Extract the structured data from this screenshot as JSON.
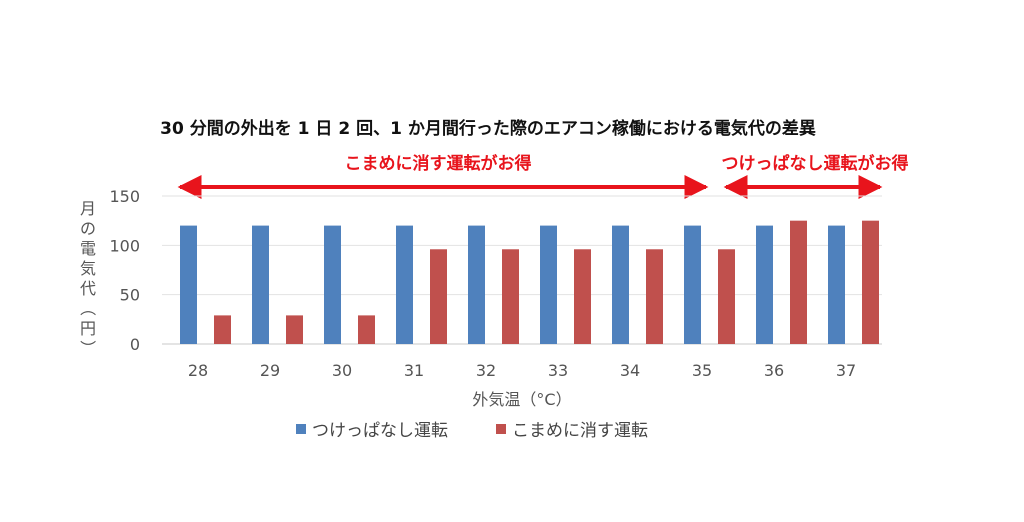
{
  "chart_data": {
    "type": "bar",
    "title": "30 分間の外出を 1 日 2 回、1 か月間行った際のエアコン稼働における電気代の差異",
    "xlabel": "外気温（°C）",
    "ylabel": "月の電気代（円）",
    "categories": [
      "28",
      "29",
      "30",
      "31",
      "32",
      "33",
      "34",
      "35",
      "36",
      "37"
    ],
    "series": [
      {
        "name": "つけっぱなし運転",
        "color": "#4f81bd",
        "values": [
          120,
          120,
          120,
          120,
          120,
          120,
          120,
          120,
          120,
          120
        ]
      },
      {
        "name": "こまめに消す運転",
        "color": "#c0504d",
        "values": [
          29,
          29,
          29,
          96,
          96,
          96,
          96,
          96,
          125,
          125
        ]
      }
    ],
    "ylim": [
      0,
      150
    ],
    "yticks": [
      "0",
      "50",
      "100",
      "150"
    ],
    "grid": true,
    "legend": "bottom",
    "annotations": [
      {
        "text": "こまめに消す運転がお得",
        "color": "#e8141c",
        "spans": [
          "28",
          "35"
        ]
      },
      {
        "text": "つけっぱなし運転がお得",
        "color": "#e8141c",
        "spans": [
          "36",
          "37"
        ]
      }
    ]
  }
}
